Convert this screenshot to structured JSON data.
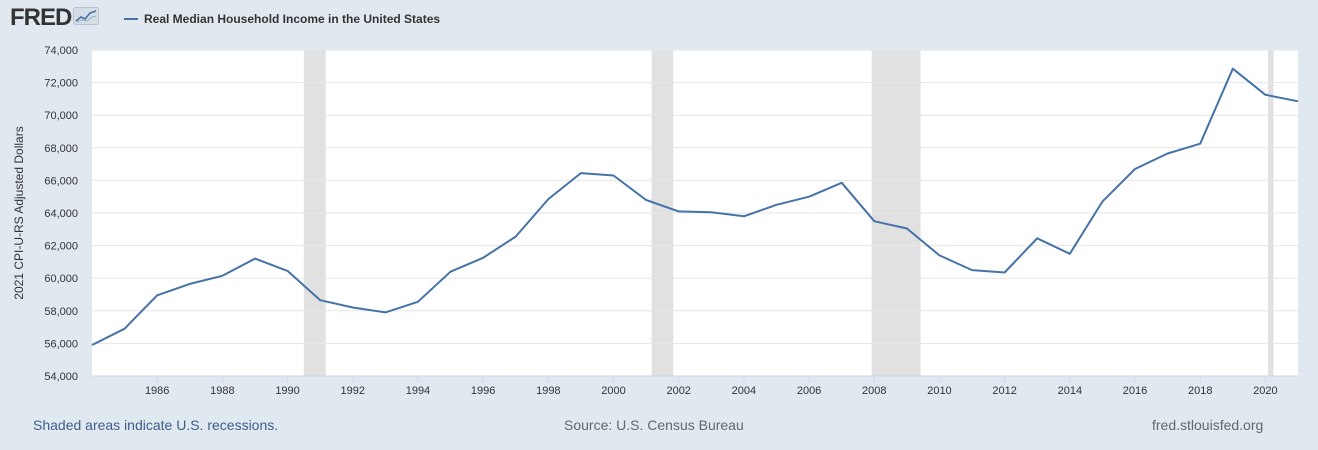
{
  "header": {
    "logo_text": "FRED",
    "logo_icon": "line-chart-badge-icon"
  },
  "colors": {
    "background": "#e1e9f0",
    "plot_background": "#ffffff",
    "series_line": "#4572a7",
    "recession_shade": "#e1e1e1",
    "gridline": "#e6e6e6",
    "text": "#333333",
    "footer_link": "#3e5d8c"
  },
  "footer": {
    "recession_note": "Shaded areas indicate U.S. recessions.",
    "source": "Source: U.S. Census Bureau",
    "site": "fred.stlouisfed.org"
  },
  "chart_data": {
    "type": "line",
    "title": "",
    "xlabel": "",
    "ylabel": "2021 CPI-U-RS Adjusted Dollars",
    "xlim": [
      1984,
      2021
    ],
    "ylim": [
      54000,
      74000
    ],
    "x_ticks": [
      1986,
      1988,
      1990,
      1992,
      1994,
      1996,
      1998,
      2000,
      2002,
      2004,
      2006,
      2008,
      2010,
      2012,
      2014,
      2016,
      2018,
      2020
    ],
    "y_ticks": [
      54000,
      56000,
      58000,
      60000,
      62000,
      64000,
      66000,
      68000,
      70000,
      72000,
      74000
    ],
    "x_tick_labels": [
      "1986",
      "1988",
      "1990",
      "1992",
      "1994",
      "1996",
      "1998",
      "2000",
      "2002",
      "2004",
      "2006",
      "2008",
      "2010",
      "2012",
      "2014",
      "2016",
      "2018",
      "2020"
    ],
    "y_tick_labels": [
      "54,000",
      "56,000",
      "58,000",
      "60,000",
      "62,000",
      "64,000",
      "66,000",
      "68,000",
      "70,000",
      "72,000",
      "74,000"
    ],
    "grid": true,
    "legend_position": "top-left",
    "recessions": [
      [
        1990.5,
        1991.17
      ],
      [
        2001.17,
        2001.83
      ],
      [
        2007.92,
        2009.42
      ],
      [
        2020.08,
        2020.25
      ]
    ],
    "series": [
      {
        "name": "Real Median Household Income in the United States",
        "x": [
          1984,
          1985,
          1986,
          1987,
          1988,
          1989,
          1990,
          1991,
          1992,
          1993,
          1994,
          1995,
          1996,
          1997,
          1998,
          1999,
          2000,
          2001,
          2002,
          2003,
          2004,
          2005,
          2006,
          2007,
          2008,
          2009,
          2010,
          2011,
          2012,
          2013,
          2014,
          2015,
          2016,
          2017,
          2018,
          2019,
          2020,
          2021
        ],
        "y": [
          55900,
          56900,
          58950,
          59650,
          60150,
          61200,
          60450,
          58650,
          58200,
          57900,
          58550,
          60400,
          61250,
          62550,
          64850,
          66450,
          66300,
          64800,
          64100,
          64050,
          63800,
          64500,
          65000,
          65850,
          63500,
          63050,
          61400,
          60500,
          60350,
          62450,
          61500,
          64700,
          66700,
          67650,
          68250,
          72850,
          71250,
          70850
        ]
      }
    ]
  }
}
